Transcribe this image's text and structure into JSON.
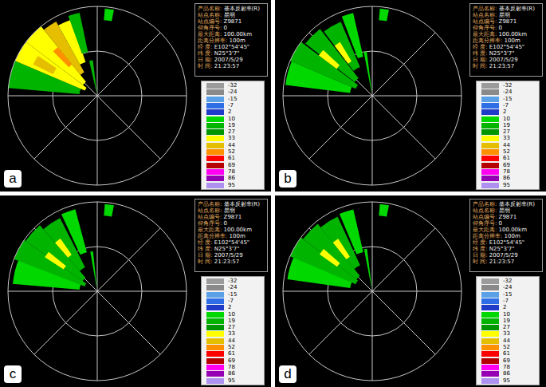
{
  "chart_data": [
    {
      "type": "barpolar",
      "label": "a",
      "xticks": [
        0,
        45,
        90,
        135,
        180,
        225,
        270,
        315
      ],
      "ylim": [
        0,
        100
      ],
      "yticks": [
        50,
        100
      ],
      "tick_labels": false,
      "grid": true,
      "info": [
        {
          "label": "产品名称:",
          "value": "基本反射率(R)"
        },
        {
          "label": "站点名称:",
          "value": "昆明"
        },
        {
          "label": "站点编号:",
          "value": "Z9871"
        },
        {
          "label": "仰角序号:",
          "value": "0"
        },
        {
          "label": "最大距离:",
          "value": "100.00km"
        },
        {
          "label": "距离分辨率:",
          "value": "100m"
        },
        {
          "label": "经 度:",
          "value": "E102°54'45\""
        },
        {
          "label": "纬 度:",
          "value": "N25°3'7\""
        },
        {
          "label": "日 期:",
          "value": "2007/5/29"
        },
        {
          "label": "时 间:",
          "value": "21:23:57"
        }
      ],
      "echoes": {
        "azimuth": [
          284,
          300,
          314,
          326,
          336,
          344,
          300,
          318,
          350,
          8
        ],
        "azimuth_width": [
          18,
          14,
          14,
          10,
          10,
          8,
          8,
          6,
          6,
          6
        ],
        "range_start": [
          20,
          15,
          20,
          30,
          40,
          50,
          55,
          45,
          5,
          85
        ],
        "range_end": [
          100,
          100,
          100,
          95,
          90,
          95,
          80,
          70,
          40,
          98
        ],
        "dbz": [
          22,
          35,
          38,
          45,
          36,
          24,
          47,
          54,
          20,
          15
        ]
      }
    },
    {
      "type": "barpolar",
      "label": "b",
      "xticks": [
        0,
        45,
        90,
        135,
        180,
        225,
        270,
        315
      ],
      "ylim": [
        0,
        100
      ],
      "yticks": [
        50,
        100
      ],
      "tick_labels": false,
      "grid": true,
      "info": [
        {
          "label": "产品名称:",
          "value": "基本反射率(R)"
        },
        {
          "label": "站点名称:",
          "value": "昆明"
        },
        {
          "label": "站点编号:",
          "value": "Z9871"
        },
        {
          "label": "仰角序号:",
          "value": "0"
        },
        {
          "label": "最大距离:",
          "value": "100.00km"
        },
        {
          "label": "距离分辨率:",
          "value": "100m"
        },
        {
          "label": "经 度:",
          "value": "E102°54'45\""
        },
        {
          "label": "纬 度:",
          "value": "N25°3'7\""
        },
        {
          "label": "日 期:",
          "value": "2007/5/29"
        },
        {
          "label": "时 间:",
          "value": "21:23:57"
        }
      ],
      "echoes": {
        "azimuth": [
          285,
          300,
          315,
          330,
          343,
          310,
          326,
          351,
          8
        ],
        "azimuth_width": [
          16,
          14,
          14,
          14,
          8,
          6,
          6,
          4,
          6
        ],
        "range_start": [
          25,
          20,
          25,
          35,
          45,
          50,
          45,
          5,
          85
        ],
        "range_end": [
          98,
          100,
          95,
          90,
          95,
          75,
          70,
          50,
          98
        ],
        "dbz": [
          15,
          22,
          20,
          24,
          17,
          35,
          34,
          12,
          14
        ]
      }
    },
    {
      "type": "barpolar",
      "label": "c",
      "xticks": [
        0,
        45,
        90,
        135,
        180,
        225,
        270,
        315
      ],
      "ylim": [
        0,
        100
      ],
      "yticks": [
        50,
        100
      ],
      "tick_labels": false,
      "grid": true,
      "info": [
        {
          "label": "产品名称:",
          "value": "基本反射率(R)"
        },
        {
          "label": "站点名称:",
          "value": "昆明"
        },
        {
          "label": "站点编号:",
          "value": "Z9871"
        },
        {
          "label": "仰角序号:",
          "value": "0"
        },
        {
          "label": "最大距离:",
          "value": "100.00km"
        },
        {
          "label": "距离分辨率:",
          "value": "100m"
        },
        {
          "label": "经 度:",
          "value": "E102°54'45\""
        },
        {
          "label": "纬 度:",
          "value": "N25°3'7\""
        },
        {
          "label": "日 期:",
          "value": "2007/5/29"
        },
        {
          "label": "时 间:",
          "value": "21:23:57"
        }
      ],
      "echoes": {
        "azimuth": [
          284,
          298,
          312,
          326,
          340,
          306,
          322,
          352,
          8
        ],
        "azimuth_width": [
          18,
          14,
          14,
          14,
          10,
          6,
          6,
          4,
          6
        ],
        "range_start": [
          20,
          15,
          20,
          30,
          45,
          45,
          50,
          5,
          85
        ],
        "range_end": [
          95,
          100,
          98,
          92,
          95,
          70,
          72,
          45,
          98
        ],
        "dbz": [
          16,
          20,
          23,
          19,
          15,
          34,
          36,
          13,
          14
        ]
      }
    },
    {
      "type": "barpolar",
      "label": "d",
      "xticks": [
        0,
        45,
        90,
        135,
        180,
        225,
        270,
        315
      ],
      "ylim": [
        0,
        100
      ],
      "yticks": [
        50,
        100
      ],
      "tick_labels": false,
      "grid": true,
      "info": [
        {
          "label": "产品名称:",
          "value": "基本反射率(R)"
        },
        {
          "label": "站点名称:",
          "value": "昆明"
        },
        {
          "label": "站点编号:",
          "value": "Z9871"
        },
        {
          "label": "仰角序号:",
          "value": "0"
        },
        {
          "label": "最大距离:",
          "value": "100.00km"
        },
        {
          "label": "距离分辨率:",
          "value": "100m"
        },
        {
          "label": "经 度:",
          "value": "E102°54'45\""
        },
        {
          "label": "纬 度:",
          "value": "N25°3'7\""
        },
        {
          "label": "日 期:",
          "value": "2007/5/29"
        },
        {
          "label": "时 间:",
          "value": "21:23:57"
        }
      ],
      "echoes": {
        "azimuth": [
          286,
          300,
          314,
          328,
          342,
          308,
          324,
          351,
          8
        ],
        "azimuth_width": [
          16,
          14,
          14,
          14,
          10,
          6,
          6,
          4,
          6
        ],
        "range_start": [
          25,
          20,
          22,
          32,
          45,
          48,
          46,
          5,
          85
        ],
        "range_end": [
          96,
          100,
          97,
          92,
          94,
          72,
          70,
          48,
          98
        ],
        "dbz": [
          15,
          21,
          24,
          20,
          16,
          35,
          34,
          12,
          14
        ]
      }
    }
  ],
  "colorbar": {
    "ticks": [
      -32,
      -24,
      -15,
      -7,
      2,
      10,
      19,
      27,
      33,
      44,
      52,
      61,
      69,
      78,
      86,
      95
    ],
    "colors": [
      "#9b9b9b",
      "#8a8a8a",
      "#5aa0e6",
      "#2d6ee6",
      "#1e3cc8",
      "#00d800",
      "#00b400",
      "#009600",
      "#ffff00",
      "#e6be00",
      "#ff9000",
      "#ff0000",
      "#b40000",
      "#ff00f0",
      "#9600b4",
      "#ad90f0"
    ]
  }
}
